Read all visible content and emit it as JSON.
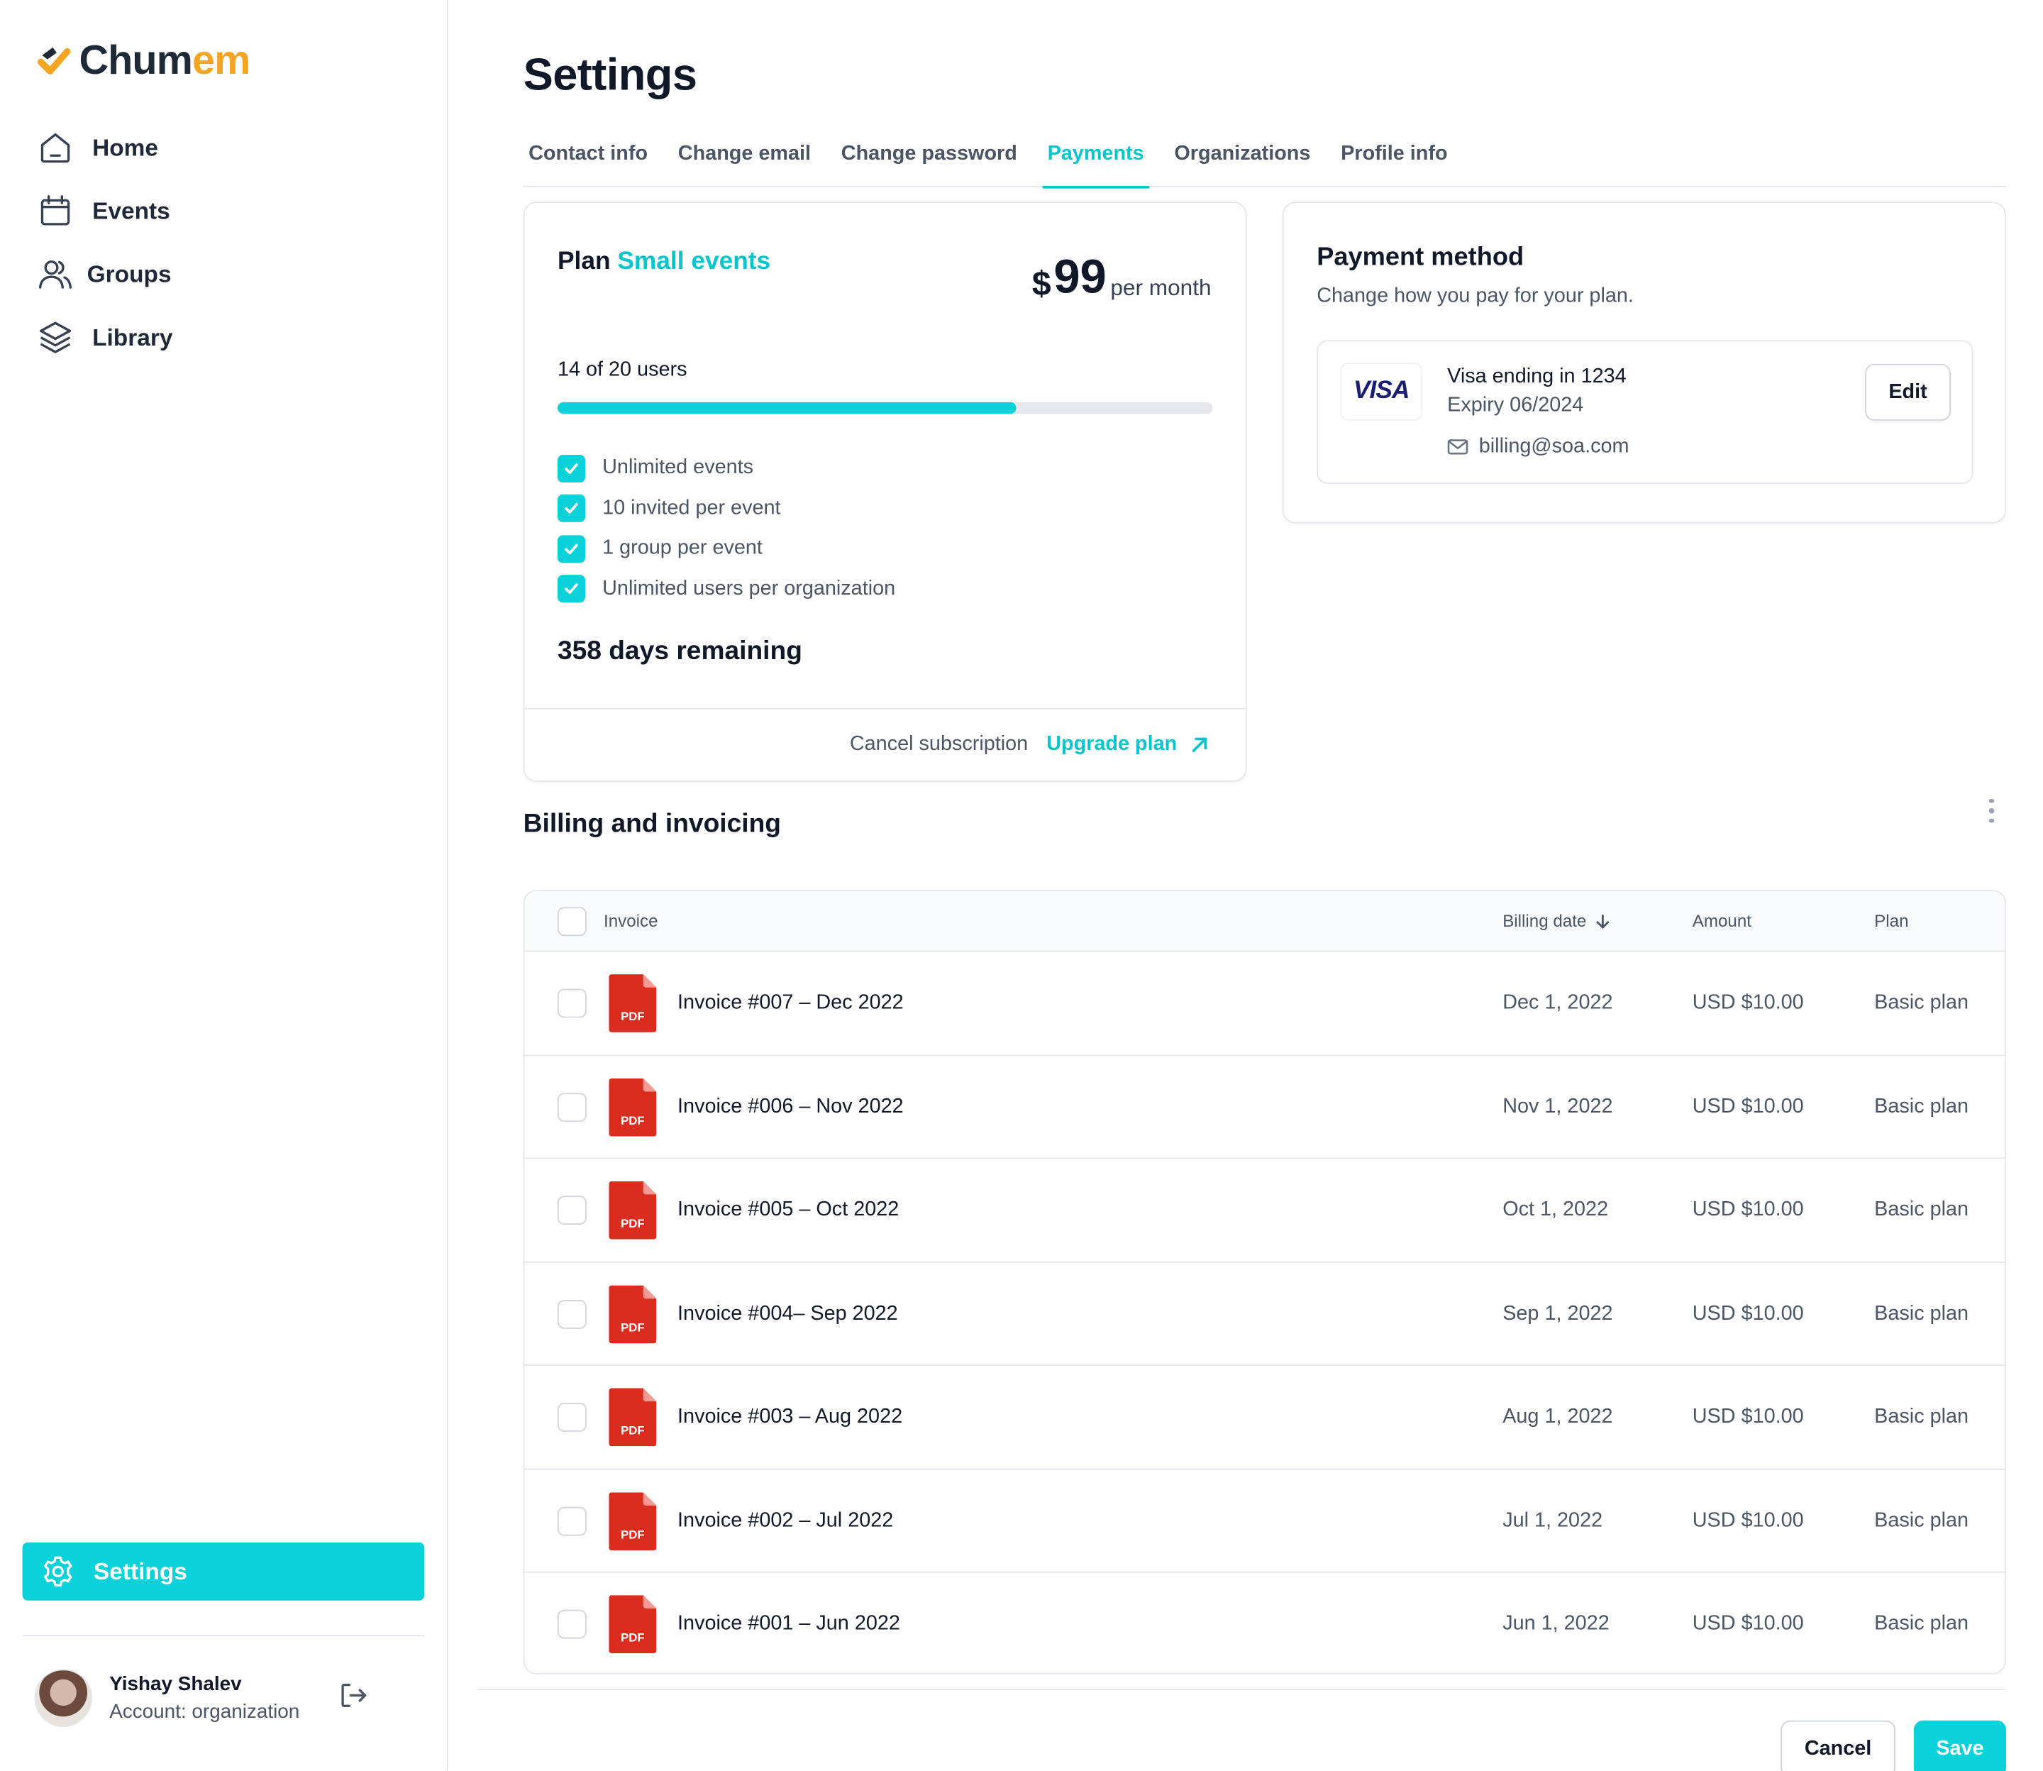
{
  "app": {
    "logo_part1": "Chum",
    "logo_part2": "em"
  },
  "colors": {
    "accent": "#0bd1d8",
    "brand_orange": "#f5a524",
    "pdf_red": "#d92d20"
  },
  "sidebar": {
    "items": [
      {
        "label": "Home",
        "icon": "home-icon"
      },
      {
        "label": "Events",
        "icon": "calendar-icon"
      },
      {
        "label": "Groups",
        "icon": "users-icon"
      },
      {
        "label": "Library",
        "icon": "layers-icon"
      }
    ],
    "settings": {
      "label": "Settings",
      "icon": "gear-icon"
    },
    "user": {
      "name": "Yishay Shalev",
      "account": "Account: organization"
    }
  },
  "page": {
    "title": "Settings",
    "tabs": [
      {
        "label": "Contact info",
        "active": false
      },
      {
        "label": "Change email",
        "active": false
      },
      {
        "label": "Change password",
        "active": false
      },
      {
        "label": "Payments",
        "active": true
      },
      {
        "label": "Organizations",
        "active": false
      },
      {
        "label": "Profile info",
        "active": false
      }
    ]
  },
  "plan": {
    "label": "Plan",
    "name": "Small events",
    "currency": "$",
    "price": "99",
    "period": "per month",
    "users_text": "14 of 20 users",
    "users_used": 14,
    "users_total": 20,
    "features": [
      "Unlimited events",
      "10 invited per event",
      "1 group per event",
      "Unlimited users per organization"
    ],
    "days_remaining": "358 days remaining",
    "cancel_label": "Cancel subscription",
    "upgrade_label": "Upgrade plan"
  },
  "payment": {
    "title": "Payment method",
    "subtitle": "Change how you pay for your plan.",
    "card_brand": "VISA",
    "card_line": "Visa ending in 1234",
    "expiry": "Expiry 06/2024",
    "email": "billing@soa.com",
    "edit_label": "Edit"
  },
  "billing": {
    "title": "Billing and invoicing",
    "columns": {
      "invoice": "Invoice",
      "date": "Billing date",
      "amount": "Amount",
      "plan": "Plan"
    },
    "rows": [
      {
        "name": "Invoice #007 – Dec 2022",
        "date": "Dec 1, 2022",
        "amount": "USD $10.00",
        "plan": "Basic plan"
      },
      {
        "name": "Invoice #006 – Nov 2022",
        "date": "Nov 1, 2022",
        "amount": "USD $10.00",
        "plan": "Basic plan"
      },
      {
        "name": "Invoice #005 – Oct 2022",
        "date": "Oct 1, 2022",
        "amount": "USD $10.00",
        "plan": "Basic plan"
      },
      {
        "name": "Invoice #004– Sep 2022",
        "date": "Sep 1, 2022",
        "amount": "USD $10.00",
        "plan": "Basic plan"
      },
      {
        "name": "Invoice #003 – Aug 2022",
        "date": "Aug 1, 2022",
        "amount": "USD $10.00",
        "plan": "Basic plan"
      },
      {
        "name": "Invoice #002 – Jul 2022",
        "date": "Jul 1, 2022",
        "amount": "USD $10.00",
        "plan": "Basic plan"
      },
      {
        "name": "Invoice #001 – Jun 2022",
        "date": "Jun 1, 2022",
        "amount": "USD $10.00",
        "plan": "Basic plan"
      }
    ],
    "file_badge": "PDF"
  },
  "footer": {
    "cancel_label": "Cancel",
    "save_label": "Save"
  }
}
